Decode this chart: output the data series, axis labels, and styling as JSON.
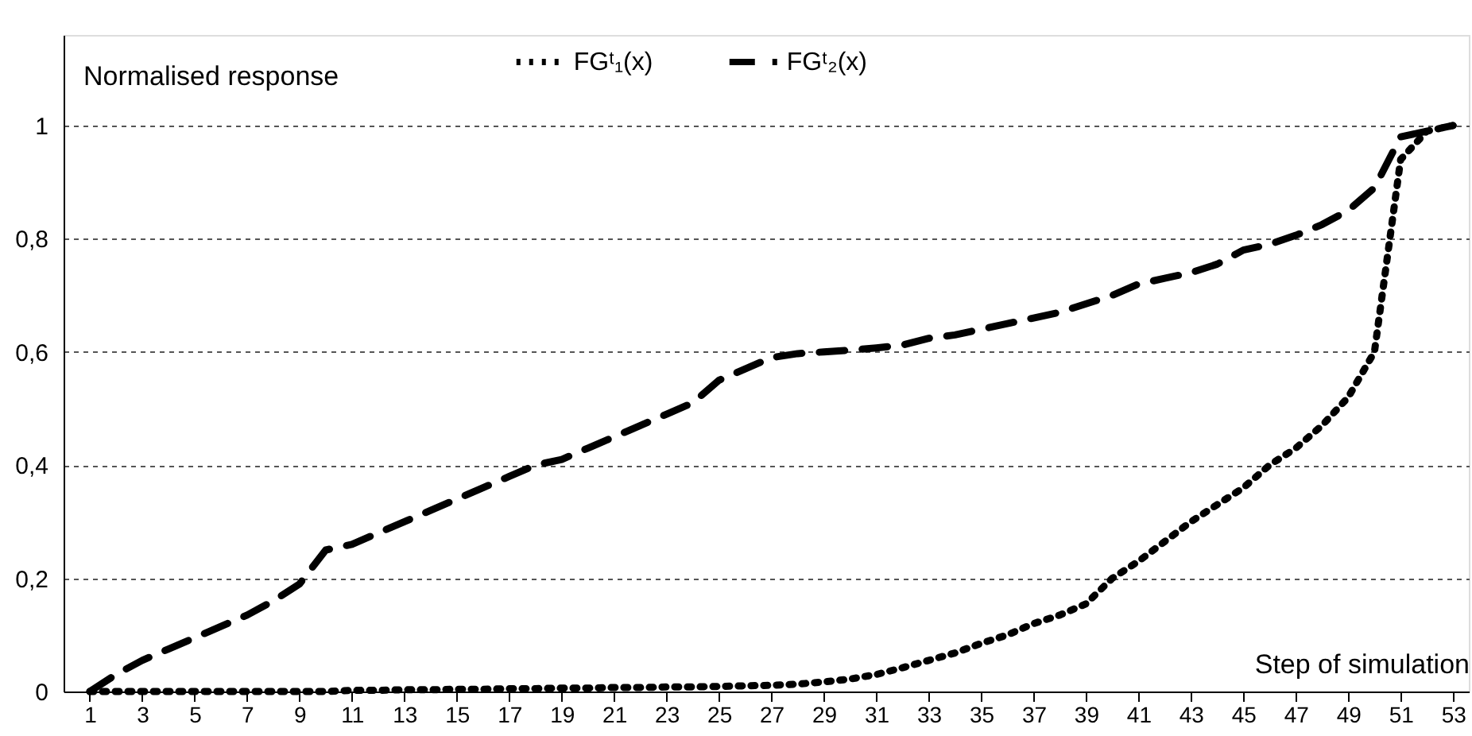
{
  "chart_data": {
    "type": "line",
    "xlabel": "Step of simulation",
    "ylabel": "Normalised response",
    "x": [
      1,
      2,
      3,
      4,
      5,
      6,
      7,
      8,
      9,
      10,
      11,
      12,
      13,
      14,
      15,
      16,
      17,
      18,
      19,
      20,
      21,
      22,
      23,
      24,
      25,
      26,
      27,
      28,
      29,
      30,
      31,
      32,
      33,
      34,
      35,
      36,
      37,
      38,
      39,
      40,
      41,
      42,
      43,
      44,
      45,
      46,
      47,
      48,
      49,
      50,
      51,
      52,
      53
    ],
    "series": [
      {
        "name": "FGᵗ₁(x)",
        "color": "#000000",
        "line_style": "dotted",
        "values": [
          0,
          0,
          0,
          0,
          0,
          0,
          0,
          0,
          0,
          0,
          0.002,
          0.002,
          0.003,
          0.003,
          0.004,
          0.004,
          0.005,
          0.005,
          0.006,
          0.006,
          0.007,
          0.007,
          0.008,
          0.008,
          0.009,
          0.01,
          0.011,
          0.013,
          0.017,
          0.022,
          0.03,
          0.042,
          0.055,
          0.068,
          0.085,
          0.1,
          0.12,
          0.135,
          0.155,
          0.2,
          0.23,
          0.265,
          0.3,
          0.33,
          0.36,
          0.4,
          0.43,
          0.47,
          0.52,
          0.6,
          0.94,
          0.99,
          1
        ]
      },
      {
        "name": "FGᵗ₂(x)",
        "color": "#000000",
        "line_style": "dashed",
        "values": [
          0,
          0.03,
          0.055,
          0.075,
          0.095,
          0.115,
          0.135,
          0.16,
          0.19,
          0.25,
          0.26,
          0.28,
          0.3,
          0.32,
          0.34,
          0.36,
          0.38,
          0.4,
          0.41,
          0.43,
          0.45,
          0.47,
          0.49,
          0.51,
          0.55,
          0.57,
          0.59,
          0.597,
          0.6,
          0.603,
          0.607,
          0.612,
          0.624,
          0.63,
          0.64,
          0.65,
          0.66,
          0.67,
          0.685,
          0.7,
          0.72,
          0.73,
          0.74,
          0.755,
          0.78,
          0.79,
          0.806,
          0.825,
          0.85,
          0.89,
          0.98,
          0.99,
          1
        ]
      }
    ],
    "xlim": [
      0,
      53.6
    ],
    "ylim": [
      0,
      1.16
    ],
    "xticks": [
      1,
      3,
      5,
      7,
      9,
      11,
      13,
      15,
      17,
      19,
      21,
      23,
      25,
      27,
      29,
      31,
      33,
      35,
      37,
      39,
      41,
      43,
      45,
      47,
      49,
      51,
      53
    ],
    "yticks": [
      0,
      {
        "value": 0.2,
        "label": "0,2"
      },
      {
        "value": 0.4,
        "label": "0,4"
      },
      {
        "value": 0.6,
        "label": "0,6"
      },
      {
        "value": 0.8,
        "label": "0,8"
      },
      1
    ],
    "grid": "y",
    "legend": "top",
    "marker": "none"
  }
}
